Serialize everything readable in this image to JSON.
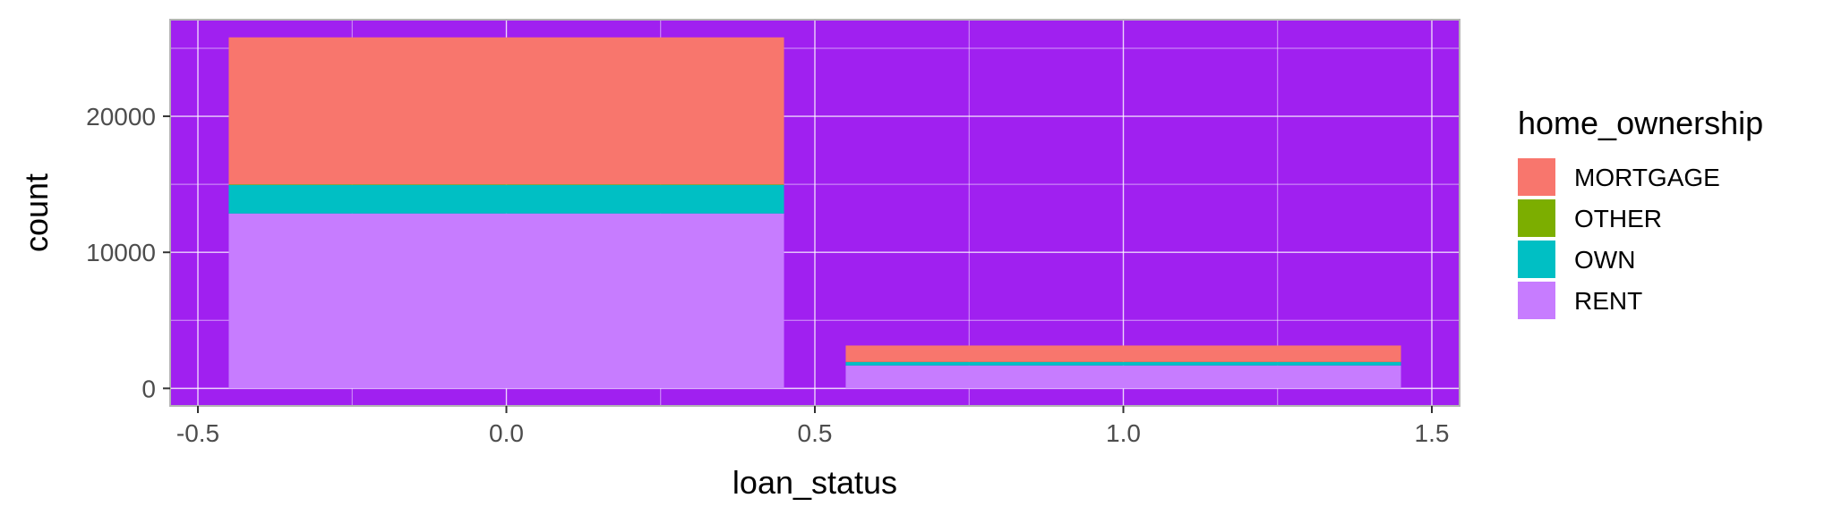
{
  "chart_data": {
    "type": "bar",
    "stacked": true,
    "xlabel": "loan_status",
    "ylabel": "count",
    "x_ticks": [
      "-0.5",
      "0.0",
      "0.5",
      "1.0",
      "1.5"
    ],
    "x_tick_values": [
      -0.5,
      0.0,
      0.5,
      1.0,
      1.5
    ],
    "y_ticks": [
      "0",
      "10000",
      "20000"
    ],
    "y_tick_values": [
      0,
      10000,
      20000
    ],
    "xlim": [
      -0.545,
      1.545
    ],
    "ylim": [
      -1290,
      27100
    ],
    "bar_width": 0.9,
    "categories": [
      0,
      1
    ],
    "series": [
      {
        "name": "MORTGAGE",
        "color": "#F8766D",
        "values": [
          10800,
          1200
        ]
      },
      {
        "name": "OTHER",
        "color": "#7CAE00",
        "values": [
          50,
          20
        ]
      },
      {
        "name": "OWN",
        "color": "#00BFC4",
        "values": [
          2100,
          250
        ]
      },
      {
        "name": "RENT",
        "color": "#C77CFF",
        "values": [
          12850,
          1680
        ]
      }
    ],
    "legend_title": "home_ownership",
    "legend_position": "right",
    "panel_background": "#A020F0",
    "grid": true
  }
}
